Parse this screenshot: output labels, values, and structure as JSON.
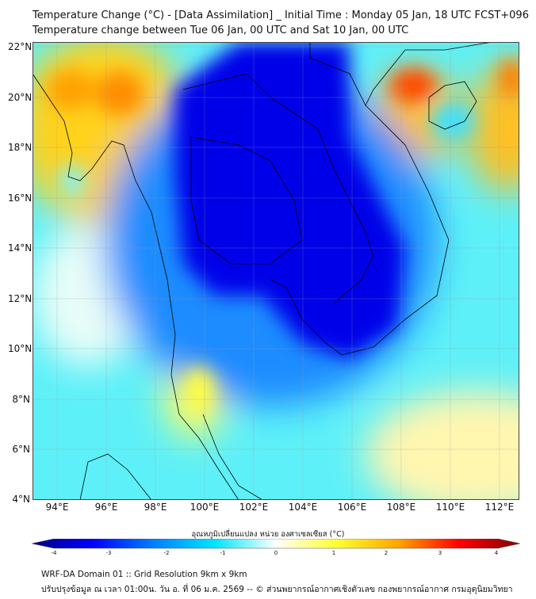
{
  "header": {
    "title_line1": "Temperature Change (°C) - [Data Assimilation] _ Initial Time : Monday 05 Jan, 18 UTC FCST+096",
    "title_line2": "Temperature change between Tue 06 Jan, 00 UTC and Sat 10 Jan, 00 UTC"
  },
  "map": {
    "lat_labels": [
      "22°N",
      "20°N",
      "18°N",
      "16°N",
      "14°N",
      "12°N",
      "10°N",
      "8°N",
      "6°N",
      "4°N"
    ],
    "lon_labels": [
      "94°E",
      "96°E",
      "98°E",
      "100°E",
      "102°E",
      "104°E",
      "106°E",
      "108°E",
      "110°E",
      "112°E"
    ]
  },
  "colorbar": {
    "label": "อุณหภูมิเปลี่ยนแปลง หน่วย องศาเซลเซียส (°C)",
    "ticks": [
      "-4",
      "-3",
      "-2",
      "-1",
      "0",
      "1",
      "2",
      "3",
      "4"
    ],
    "colors": [
      "#00007f",
      "#0000ff",
      "#0080ff",
      "#00e5ff",
      "#ffffff",
      "#ffff33",
      "#ffa500",
      "#ff0000",
      "#7f0000"
    ]
  },
  "footer": {
    "line1": "WRF-DA Domain 01 :: Grid Resolution 9km x 9km",
    "line2": "ปรับปรุงข้อมูล ณ เวลา 01:00น. วัน อ. ที่ 06 ม.ค. 2569 -- © ส่วนพยากรณ์อากาศเชิงตัวเลข กองพยากรณ์อากาศ กรมอุตุนิยมวิทยา"
  },
  "chart_data": {
    "type": "heatmap",
    "title": "Temperature Change (°C)",
    "lon_range": [
      93,
      112.5
    ],
    "lat_range": [
      4,
      22.2
    ],
    "value_range": [
      -4,
      4
    ],
    "units": "°C",
    "features": [
      {
        "region": "Thailand / Laos / Cambodia interior",
        "value": -3.5
      },
      {
        "region": "Gulf of Tonkin north (108°E, 20.5°N)",
        "value": 2.5
      },
      {
        "region": "Myanmar coast (94.5°E, 20°N)",
        "value": 2
      },
      {
        "region": "South China Sea NE corner (112°E, 21°N)",
        "value": 2
      },
      {
        "region": "Southern Thailand peninsula (99.5°E, 8°N)",
        "value": 0.8
      },
      {
        "region": "South China Sea south (108°E, 5°N)",
        "value": 0.5
      }
    ]
  }
}
